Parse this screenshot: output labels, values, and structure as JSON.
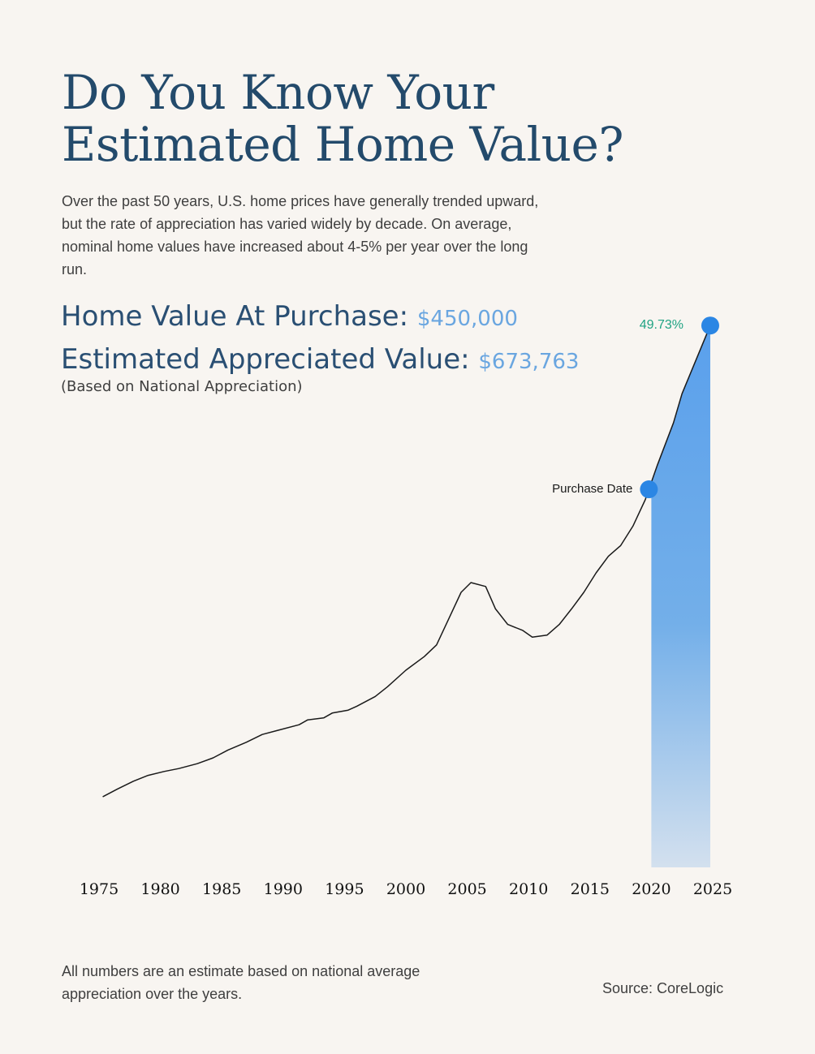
{
  "title_line1": "Do You Know Your",
  "title_line2": "Estimated Home Value?",
  "intro": "Over the past 50 years, U.S. home prices have generally trended upward, but the rate of appreciation has varied widely by decade. On average, nominal home values have increased about 4-5% per year over the long run.",
  "purchase": {
    "label": "Home Value At Purchase:",
    "value": "$450,000"
  },
  "appreciated": {
    "label": "Estimated Appreciated Value:",
    "value": "$673,763"
  },
  "basis_note": "(Based on National Appreciation)",
  "footnote": "All numbers are an estimate based on national average appreciation over the years.",
  "source": "Source: CoreLogic",
  "colors": {
    "title": "#234a6b",
    "value": "#6aa6e0",
    "fill_top": "#5aa0ec",
    "fill_bottom": "#d3e0ee",
    "marker": "#2b86e4",
    "percent": "#1fa383",
    "line": "#1a1a1a"
  },
  "chart_data": {
    "type": "line",
    "x_ticks": [
      "1975",
      "1980",
      "1985",
      "1990",
      "1995",
      "2000",
      "2005",
      "2010",
      "2015",
      "2020",
      "2025"
    ],
    "xlim": [
      1975,
      2025
    ],
    "series": [
      {
        "x": [
          1975.3,
          1976.5,
          1977.8,
          1979,
          1980.3,
          1981.5,
          1983,
          1984.3,
          1985.5,
          1987,
          1988.3,
          1989.5,
          1991.3,
          1992,
          1993.3,
          1994,
          1995.3,
          1996,
          1997.5,
          1998.5,
          2000,
          2001.5,
          2002.5,
          2003.5,
          2004.5,
          2005.3,
          2006.5,
          2007.3,
          2008.3,
          2009.5,
          2010.3,
          2011.5,
          2012.5,
          2013.5,
          2014.5,
          2015.5,
          2016.5,
          2017.5,
          2018.5,
          2019.5,
          2020.5,
          2021.8,
          2022.5,
          2024.8
        ],
        "y": [
          62,
          70,
          78,
          84,
          88,
          91,
          96,
          102,
          110,
          118,
          126,
          130,
          136,
          141,
          143,
          148,
          151,
          155,
          165,
          175,
          192,
          206,
          218,
          245,
          272,
          282,
          278,
          255,
          239,
          233,
          226,
          228,
          239,
          255,
          272,
          292,
          309,
          320,
          340,
          367,
          403,
          446,
          476,
          546
        ]
      }
    ],
    "markers": [
      {
        "x": 2019.8,
        "label": "Purchase Date"
      },
      {
        "x": 2024.8,
        "label": "49.73%"
      }
    ],
    "shaded_range": [
      2020,
      2025
    ]
  }
}
